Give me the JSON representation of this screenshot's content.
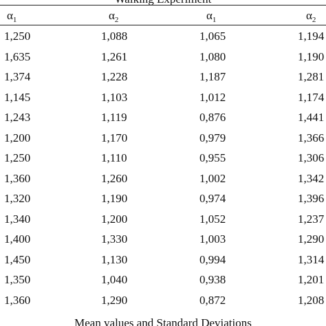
{
  "top_caption": "Walking Experiment",
  "headers": [
    {
      "symbol": "α",
      "subscript": "1"
    },
    {
      "symbol": "α",
      "subscript": "2"
    },
    {
      "symbol": "α",
      "subscript": "1"
    },
    {
      "symbol": "α",
      "subscript": "2"
    }
  ],
  "rows": [
    [
      "1,250",
      "1,088",
      "1,065",
      "1,194"
    ],
    [
      "1,635",
      "1,261",
      "1,080",
      "1,190"
    ],
    [
      "1,374",
      "1,228",
      "1,187",
      "1,281"
    ],
    [
      "1,145",
      "1,103",
      "1,012",
      "1,174"
    ],
    [
      "1,243",
      "1,119",
      "0,876",
      "1,441"
    ],
    [
      "1,200",
      "1,170",
      "0,979",
      "1,366"
    ],
    [
      "1,250",
      "1,110",
      "0,955",
      "1,306"
    ],
    [
      "1,360",
      "1,260",
      "1,002",
      "1,342"
    ],
    [
      "1,320",
      "1,190",
      "0,974",
      "1,396"
    ],
    [
      "1,340",
      "1,200",
      "1,052",
      "1,237"
    ],
    [
      "1,400",
      "1,330",
      "1,003",
      "1,290"
    ],
    [
      "1,450",
      "1,130",
      "0,994",
      "1,314"
    ],
    [
      "1,350",
      "1,040",
      "0,938",
      "1,201"
    ],
    [
      "1,360",
      "1,290",
      "0,872",
      "1,208"
    ]
  ],
  "bottom_caption": "Mean values and   Standard Deviations"
}
